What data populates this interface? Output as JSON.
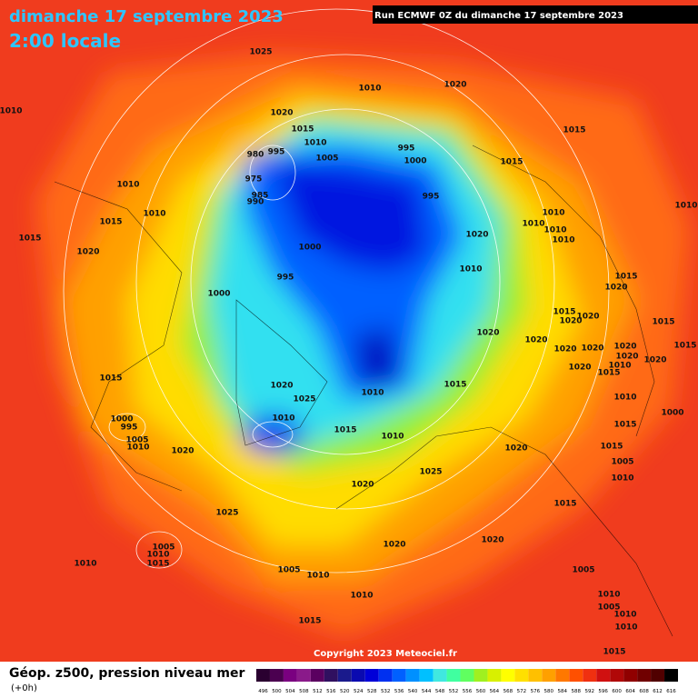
{
  "header": {
    "title": "dimanche 17 septembre 2023",
    "time": "2:00 locale",
    "run": "Run ECMWF 0Z du dimanche 17 septembre 2023"
  },
  "copyright": "Copyright 2023 Meteociel.fr",
  "footer": {
    "product": "Géop. z500, pression niveau mer",
    "step": "(+0h)"
  },
  "legend": {
    "values": [
      496,
      500,
      504,
      508,
      512,
      516,
      520,
      524,
      528,
      532,
      536,
      540,
      544,
      548,
      552,
      556,
      560,
      564,
      568,
      572,
      576,
      580,
      584,
      588,
      592,
      596,
      600,
      604,
      608,
      612,
      616
    ],
    "colors": [
      "#2a0030",
      "#4b0050",
      "#7a0080",
      "#8a1a8a",
      "#5a0060",
      "#301060",
      "#1a1a8c",
      "#0a0ab0",
      "#0000d8",
      "#0030f0",
      "#0060ff",
      "#0090ff",
      "#00c0ff",
      "#40e8e0",
      "#40ffa0",
      "#60ff60",
      "#a0f020",
      "#d8f000",
      "#ffff00",
      "#ffe000",
      "#ffc000",
      "#ffa000",
      "#ff7800",
      "#ff5000",
      "#f03010",
      "#d01010",
      "#b00808",
      "#900000",
      "#700000",
      "#500000",
      "#000000"
    ]
  },
  "isobar_labels": [
    "1025",
    "1010",
    "1020",
    "1010",
    "1020",
    "1015",
    "1010",
    "995",
    "980",
    "995",
    "1005",
    "1000",
    "1015",
    "1015",
    "975",
    "985",
    "990",
    "995",
    "1010",
    "1010",
    "1015",
    "1015",
    "1020",
    "1000",
    "1020",
    "1010",
    "1010",
    "1010",
    "1010",
    "1010",
    "995",
    "1010",
    "1015",
    "1020",
    "1000",
    "1015",
    "1020",
    "1020",
    "1015",
    "1020",
    "1020",
    "1015",
    "1020",
    "1020",
    "1020",
    "1020",
    "1020",
    "1010",
    "1015",
    "1020",
    "1015",
    "1020",
    "1010",
    "1015",
    "1025",
    "1010",
    "1010",
    "1000",
    "995",
    "1000",
    "1015",
    "1010",
    "1015",
    "1005",
    "1010",
    "1020",
    "1015",
    "1020",
    "1005",
    "1025",
    "1010",
    "1020",
    "1015",
    "1025",
    "1005",
    "1010",
    "1015",
    "1020",
    "1020",
    "1010",
    "1005",
    "1010",
    "1005",
    "1010",
    "1010",
    "1005",
    "1015",
    "1010",
    "1010",
    "1015"
  ]
}
